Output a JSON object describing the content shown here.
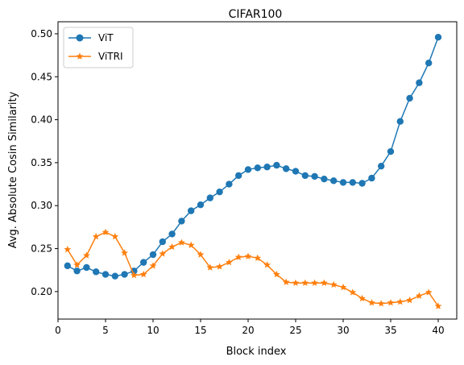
{
  "chart_data": {
    "type": "line",
    "title": "CIFAR100",
    "xlabel": "Block index",
    "ylabel": "Avg. Absolute Cosin Similarity",
    "xlim": [
      0,
      41.95
    ],
    "ylim": [
      0.168,
      0.514
    ],
    "xticks": [
      0,
      5,
      10,
      15,
      20,
      25,
      30,
      35,
      40
    ],
    "yticks": [
      0.2,
      0.25,
      0.3,
      0.35,
      0.4,
      0.45,
      0.5
    ],
    "ytick_labels": [
      "0.20",
      "0.25",
      "0.30",
      "0.35",
      "0.40",
      "0.45",
      "0.50"
    ],
    "grid": false,
    "legend_position": "top-left",
    "x": [
      1,
      2,
      3,
      4,
      5,
      6,
      7,
      8,
      9,
      10,
      11,
      12,
      13,
      14,
      15,
      16,
      17,
      18,
      19,
      20,
      21,
      22,
      23,
      24,
      25,
      26,
      27,
      28,
      29,
      30,
      31,
      32,
      33,
      34,
      35,
      36,
      37,
      38,
      39,
      40
    ],
    "series": [
      {
        "name": "ViT",
        "color": "#1f77b4",
        "marker": "circle",
        "values": [
          0.23,
          0.224,
          0.228,
          0.223,
          0.22,
          0.218,
          0.22,
          0.224,
          0.234,
          0.243,
          0.258,
          0.267,
          0.282,
          0.294,
          0.301,
          0.309,
          0.316,
          0.325,
          0.335,
          0.342,
          0.344,
          0.345,
          0.347,
          0.343,
          0.34,
          0.335,
          0.334,
          0.331,
          0.329,
          0.327,
          0.327,
          0.326,
          0.332,
          0.346,
          0.363,
          0.398,
          0.425,
          0.443,
          0.466,
          0.496
        ]
      },
      {
        "name": "ViTRI",
        "color": "#ff7f0e",
        "marker": "star",
        "values": [
          0.249,
          0.231,
          0.242,
          0.264,
          0.269,
          0.264,
          0.245,
          0.219,
          0.22,
          0.23,
          0.244,
          0.252,
          0.257,
          0.254,
          0.243,
          0.228,
          0.229,
          0.234,
          0.24,
          0.241,
          0.239,
          0.231,
          0.22,
          0.211,
          0.21,
          0.21,
          0.21,
          0.21,
          0.208,
          0.205,
          0.199,
          0.192,
          0.187,
          0.186,
          0.187,
          0.188,
          0.19,
          0.195,
          0.199,
          0.183
        ]
      }
    ]
  }
}
